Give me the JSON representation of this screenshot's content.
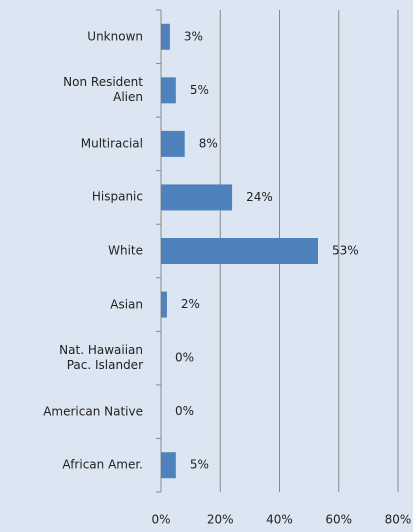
{
  "chart_data": {
    "type": "barh",
    "categories": [
      "Unknown",
      "Non Resident\nAlien",
      "Multiracial",
      "Hispanic",
      "White",
      "Asian",
      "Nat. Hawaiian\nPac. Islander",
      "American Native",
      "African Amer."
    ],
    "values": [
      3,
      5,
      8,
      24,
      53,
      2,
      0,
      0,
      5
    ],
    "value_labels": [
      "3%",
      "5%",
      "8%",
      "24%",
      "53%",
      "2%",
      "0%",
      "0%",
      "5%"
    ],
    "color": "#4f81bd",
    "xlim": [
      0,
      80
    ],
    "xticks": [
      {
        "value": 0,
        "label": "0%"
      },
      {
        "value": 20,
        "label": "20%"
      },
      {
        "value": 40,
        "label": "40%"
      },
      {
        "value": 60,
        "label": "60%"
      },
      {
        "value": 80,
        "label": "80%"
      }
    ],
    "grid": true
  }
}
